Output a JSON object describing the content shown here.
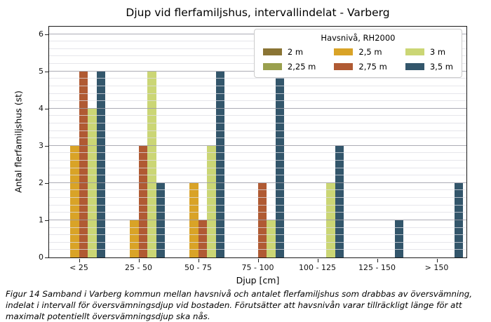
{
  "title": "Djup vid flerfamiljshus, intervallindelat - Varberg",
  "chart_data": {
    "type": "bar",
    "title": "Djup vid flerfamiljshus, intervallindelat - Varberg",
    "xlabel": "Djup [cm]",
    "ylabel": "Antal flerfamiljshus (st)",
    "categories": [
      "< 25",
      "25 - 50",
      "50 - 75",
      "75 - 100",
      "100 - 125",
      "125 - 150",
      "> 150"
    ],
    "series": [
      {
        "name": "2 m",
        "color": "#8a7434",
        "values": [
          0,
          0,
          0,
          0,
          0,
          0,
          0
        ]
      },
      {
        "name": "2,25 m",
        "color": "#9aa04e",
        "values": [
          0,
          0,
          0,
          0,
          0,
          0,
          0
        ]
      },
      {
        "name": "2,5 m",
        "color": "#d9a327",
        "values": [
          3,
          1,
          2,
          0,
          0,
          0,
          0
        ]
      },
      {
        "name": "2,75 m",
        "color": "#b05a33",
        "values": [
          5,
          3,
          1,
          2,
          0,
          0,
          0
        ]
      },
      {
        "name": "3 m",
        "color": "#cbd675",
        "values": [
          4,
          5,
          3,
          1,
          2,
          0,
          0
        ]
      },
      {
        "name": "3,5 m",
        "color": "#33566b",
        "values": [
          5,
          2,
          5,
          5,
          3,
          1,
          2
        ]
      }
    ],
    "ylim": [
      0,
      6.2
    ],
    "yticks": [
      0,
      1,
      2,
      3,
      4,
      5,
      6
    ],
    "grid": "horizontal major every 1, minor every 0.2, drawn over bars",
    "legend_title": "Havsnivå, RH2000",
    "legend_position": "upper right, 3 columns"
  },
  "legend": {
    "title": "Havsnivå, RH2000"
  },
  "axes": {
    "xlabel": "Djup [cm]",
    "ylabel": "Antal flerfamiljshus (st)"
  },
  "caption_lines": [
    "Figur 14 Samband i Varberg kommun mellan havsnivå och antalet flerfamiljshus som drabbas av översvämning,",
    "indelat i intervall för översvämningsdjup vid bostaden. Förutsätter att havsnivån varar tillräckligt länge för att",
    "maximalt potentiellt översvämningsdjup ska nås."
  ],
  "colors": {
    "major_grid": "#a2a2aa",
    "minor_grid": "#e2e2e8",
    "spine": "#1a1a1a",
    "background": "#ffffff"
  }
}
